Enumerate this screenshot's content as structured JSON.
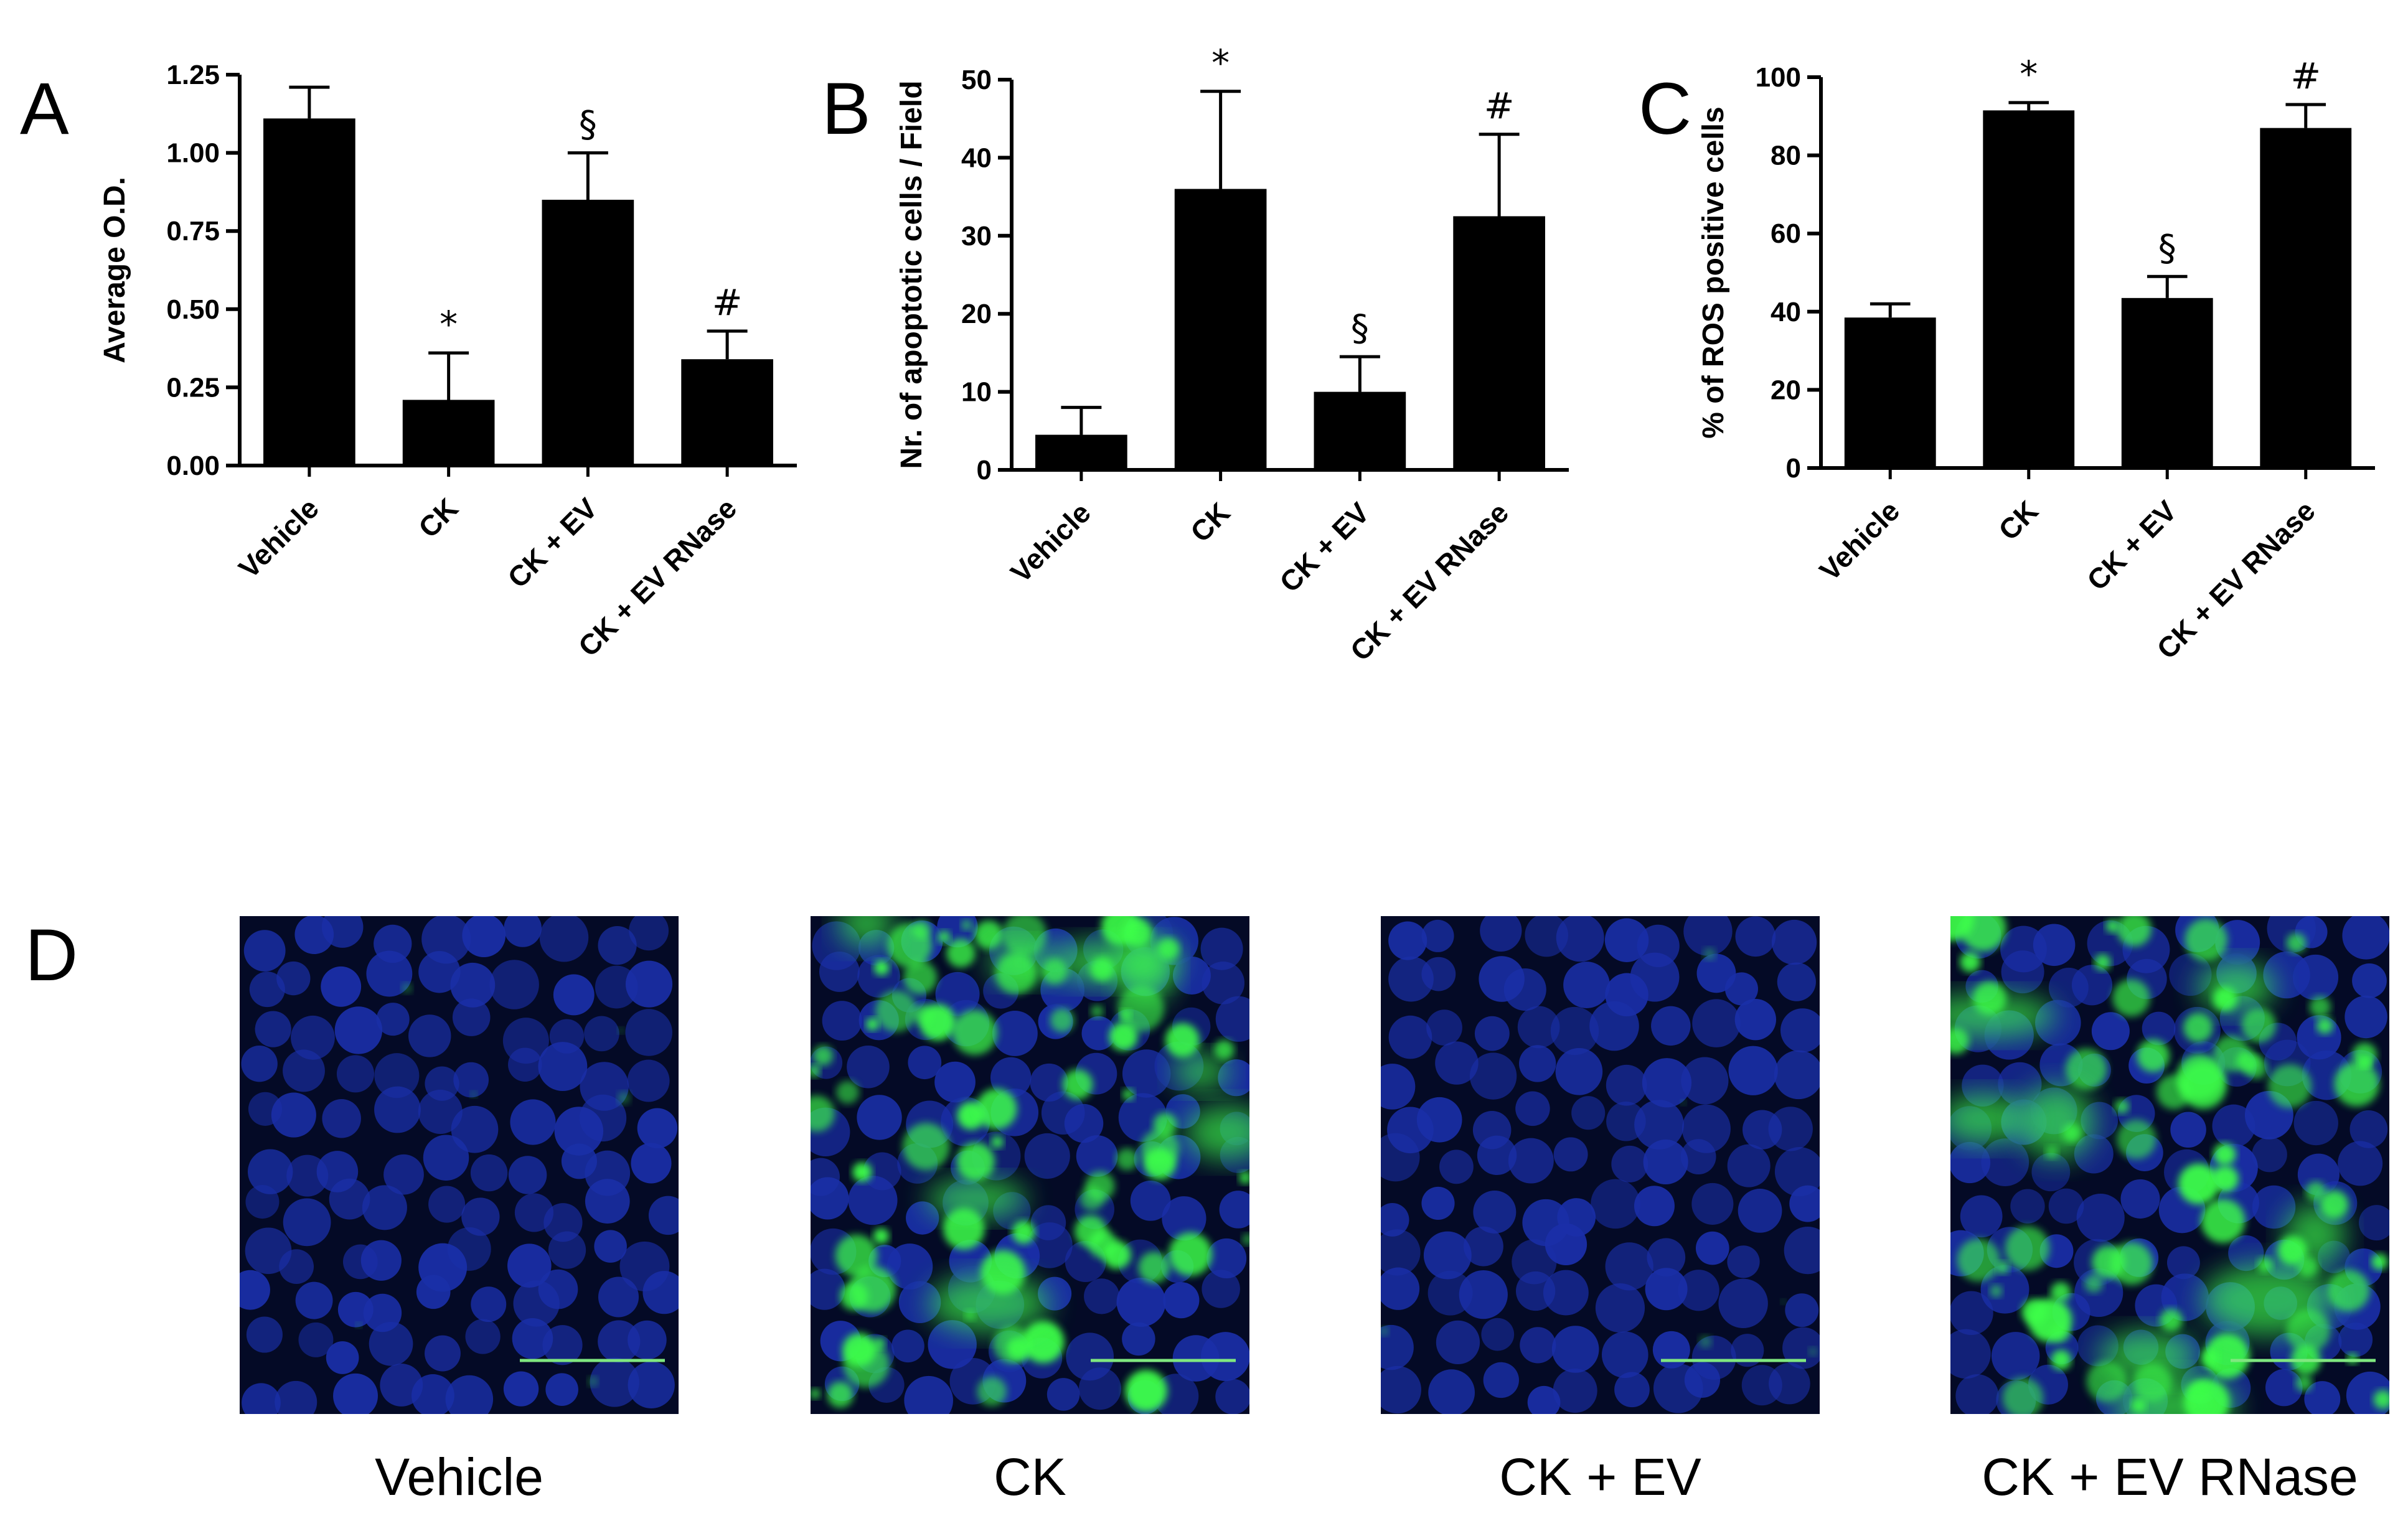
{
  "figure_panels": {
    "D": "D"
  },
  "chart_data": [
    {
      "panel": "A",
      "type": "bar",
      "categories": [
        "Vehicle",
        "CK",
        "CK + EV",
        "CK + EV RNase"
      ],
      "values": [
        1.11,
        0.21,
        0.85,
        0.34
      ],
      "errors": [
        0.1,
        0.15,
        0.15,
        0.09
      ],
      "annotations": [
        "",
        "*",
        "§",
        "#"
      ],
      "title": "",
      "xlabel": "",
      "ylabel": "Average O.D.",
      "ylim": [
        0,
        1.25
      ],
      "yticks": [
        "0.00",
        "0.25",
        "0.50",
        "0.75",
        "1.00",
        "1.25"
      ],
      "bar_color": "#000000"
    },
    {
      "panel": "B",
      "type": "bar",
      "categories": [
        "Vehicle",
        "CK",
        "CK + EV",
        "CK + EV RNase"
      ],
      "values": [
        4.5,
        36,
        10,
        32.5
      ],
      "errors": [
        3.5,
        12.5,
        4.5,
        10.5
      ],
      "annotations": [
        "",
        "*",
        "§",
        "#"
      ],
      "title": "",
      "xlabel": "",
      "ylabel": "Nr. of apoptotic cells / Field",
      "ylim": [
        0,
        50
      ],
      "yticks": [
        "0",
        "10",
        "20",
        "30",
        "40",
        "50"
      ],
      "bar_color": "#000000"
    },
    {
      "panel": "C",
      "type": "bar",
      "categories": [
        "Vehicle",
        "CK",
        "CK + EV",
        "CK + EV RNase"
      ],
      "values": [
        38.5,
        91.5,
        43.5,
        87
      ],
      "errors": [
        3.5,
        2,
        5.5,
        6
      ],
      "annotations": [
        "",
        "*",
        "§",
        "#"
      ],
      "title": "",
      "xlabel": "",
      "ylabel": "% of ROS positive cells",
      "ylim": [
        0,
        100
      ],
      "yticks": [
        "0",
        "20",
        "40",
        "60",
        "80",
        "100"
      ],
      "bar_color": "#000000"
    }
  ],
  "micrographs": [
    {
      "caption": "Vehicle",
      "stain_level": "low",
      "nuclear_color": "#1a2fa8",
      "signal_color": "#3cff4a"
    },
    {
      "caption": "CK",
      "stain_level": "high",
      "nuclear_color": "#1a2fa8",
      "signal_color": "#3cff4a"
    },
    {
      "caption": "CK + EV",
      "stain_level": "low",
      "nuclear_color": "#1a2fa8",
      "signal_color": "#3cff4a"
    },
    {
      "caption": "CK + EV RNase",
      "stain_level": "high",
      "nuclear_color": "#1a2fa8",
      "signal_color": "#3cff4a"
    }
  ]
}
